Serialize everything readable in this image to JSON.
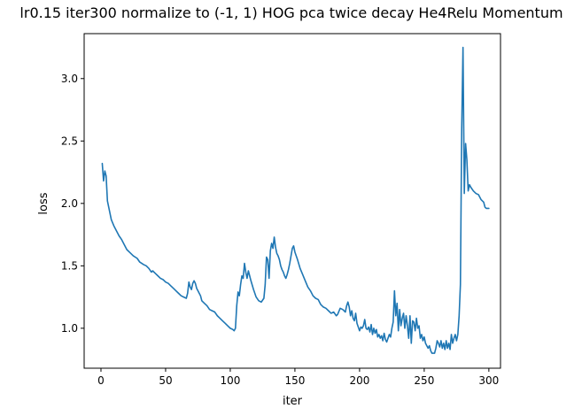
{
  "chart_data": {
    "type": "line",
    "title": "lr0.15 iter300 normalize to (-1, 1) HOG pca twice decay He4Relu Momentum",
    "xlabel": "iter",
    "ylabel": "loss",
    "xlim": [
      -13,
      309
    ],
    "ylim": [
      0.68,
      3.36
    ],
    "xticks": [
      0,
      50,
      100,
      150,
      200,
      250,
      300
    ],
    "xtick_labels": [
      "0",
      "50",
      "100",
      "150",
      "200",
      "250",
      "300"
    ],
    "yticks": [
      1.0,
      1.5,
      2.0,
      2.5,
      3.0
    ],
    "ytick_labels": [
      "1.0",
      "1.5",
      "2.0",
      "2.5",
      "3.0"
    ],
    "grid": false,
    "series": [
      {
        "color": "#1f77b4",
        "points": [
          [
            1,
            2.32
          ],
          [
            2,
            2.18
          ],
          [
            3,
            2.26
          ],
          [
            4,
            2.22
          ],
          [
            5,
            2.02
          ],
          [
            6,
            1.97
          ],
          [
            7,
            1.92
          ],
          [
            8,
            1.87
          ],
          [
            10,
            1.82
          ],
          [
            12,
            1.78
          ],
          [
            14,
            1.74
          ],
          [
            16,
            1.71
          ],
          [
            18,
            1.67
          ],
          [
            20,
            1.63
          ],
          [
            22,
            1.61
          ],
          [
            25,
            1.58
          ],
          [
            28,
            1.56
          ],
          [
            30,
            1.53
          ],
          [
            33,
            1.51
          ],
          [
            35,
            1.5
          ],
          [
            37,
            1.48
          ],
          [
            39,
            1.45
          ],
          [
            40,
            1.46
          ],
          [
            42,
            1.44
          ],
          [
            44,
            1.42
          ],
          [
            46,
            1.4
          ],
          [
            48,
            1.39
          ],
          [
            50,
            1.37
          ],
          [
            52,
            1.36
          ],
          [
            54,
            1.34
          ],
          [
            56,
            1.32
          ],
          [
            58,
            1.3
          ],
          [
            60,
            1.28
          ],
          [
            62,
            1.26
          ],
          [
            64,
            1.25
          ],
          [
            66,
            1.24
          ],
          [
            67,
            1.28
          ],
          [
            68,
            1.37
          ],
          [
            69,
            1.33
          ],
          [
            70,
            1.31
          ],
          [
            71,
            1.36
          ],
          [
            72,
            1.38
          ],
          [
            73,
            1.36
          ],
          [
            74,
            1.32
          ],
          [
            75,
            1.3
          ],
          [
            76,
            1.28
          ],
          [
            77,
            1.26
          ],
          [
            78,
            1.22
          ],
          [
            80,
            1.2
          ],
          [
            82,
            1.18
          ],
          [
            84,
            1.15
          ],
          [
            86,
            1.14
          ],
          [
            88,
            1.13
          ],
          [
            90,
            1.1
          ],
          [
            92,
            1.08
          ],
          [
            94,
            1.06
          ],
          [
            96,
            1.04
          ],
          [
            98,
            1.02
          ],
          [
            100,
            1.0
          ],
          [
            102,
            0.99
          ],
          [
            103,
            0.98
          ],
          [
            104,
            1.0
          ],
          [
            105,
            1.18
          ],
          [
            106,
            1.29
          ],
          [
            107,
            1.26
          ],
          [
            108,
            1.35
          ],
          [
            109,
            1.42
          ],
          [
            110,
            1.4
          ],
          [
            111,
            1.52
          ],
          [
            112,
            1.45
          ],
          [
            113,
            1.4
          ],
          [
            114,
            1.46
          ],
          [
            115,
            1.42
          ],
          [
            116,
            1.38
          ],
          [
            118,
            1.31
          ],
          [
            120,
            1.25
          ],
          [
            122,
            1.22
          ],
          [
            124,
            1.21
          ],
          [
            126,
            1.24
          ],
          [
            127,
            1.35
          ],
          [
            128,
            1.57
          ],
          [
            129,
            1.55
          ],
          [
            130,
            1.4
          ],
          [
            131,
            1.62
          ],
          [
            132,
            1.68
          ],
          [
            133,
            1.64
          ],
          [
            134,
            1.73
          ],
          [
            135,
            1.65
          ],
          [
            136,
            1.6
          ],
          [
            137,
            1.58
          ],
          [
            138,
            1.55
          ],
          [
            139,
            1.5
          ],
          [
            140,
            1.47
          ],
          [
            141,
            1.45
          ],
          [
            142,
            1.42
          ],
          [
            143,
            1.4
          ],
          [
            144,
            1.43
          ],
          [
            145,
            1.47
          ],
          [
            146,
            1.52
          ],
          [
            147,
            1.58
          ],
          [
            148,
            1.64
          ],
          [
            149,
            1.66
          ],
          [
            150,
            1.61
          ],
          [
            152,
            1.55
          ],
          [
            154,
            1.48
          ],
          [
            156,
            1.43
          ],
          [
            158,
            1.38
          ],
          [
            160,
            1.33
          ],
          [
            162,
            1.3
          ],
          [
            164,
            1.26
          ],
          [
            166,
            1.24
          ],
          [
            168,
            1.23
          ],
          [
            170,
            1.19
          ],
          [
            172,
            1.17
          ],
          [
            174,
            1.16
          ],
          [
            176,
            1.14
          ],
          [
            178,
            1.12
          ],
          [
            180,
            1.13
          ],
          [
            182,
            1.1
          ],
          [
            183,
            1.11
          ],
          [
            185,
            1.16
          ],
          [
            187,
            1.15
          ],
          [
            189,
            1.13
          ],
          [
            190,
            1.18
          ],
          [
            191,
            1.21
          ],
          [
            192,
            1.17
          ],
          [
            193,
            1.1
          ],
          [
            194,
            1.14
          ],
          [
            195,
            1.08
          ],
          [
            196,
            1.06
          ],
          [
            197,
            1.12
          ],
          [
            198,
            1.04
          ],
          [
            199,
            1.01
          ],
          [
            200,
            0.98
          ],
          [
            201,
            1.01
          ],
          [
            202,
            1.0
          ],
          [
            203,
            1.02
          ],
          [
            204,
            1.07
          ],
          [
            205,
            1.0
          ],
          [
            206,
            0.99
          ],
          [
            207,
            1.01
          ],
          [
            208,
            0.97
          ],
          [
            209,
            1.03
          ],
          [
            210,
            0.95
          ],
          [
            211,
            1.0
          ],
          [
            212,
            0.96
          ],
          [
            213,
            0.99
          ],
          [
            214,
            0.93
          ],
          [
            215,
            0.95
          ],
          [
            216,
            0.92
          ],
          [
            217,
            0.94
          ],
          [
            218,
            0.9
          ],
          [
            219,
            0.96
          ],
          [
            220,
            0.91
          ],
          [
            221,
            0.89
          ],
          [
            222,
            0.92
          ],
          [
            223,
            0.95
          ],
          [
            224,
            0.93
          ],
          [
            225,
            1.0
          ],
          [
            226,
            1.05
          ],
          [
            227,
            1.3
          ],
          [
            228,
            1.1
          ],
          [
            229,
            1.2
          ],
          [
            230,
            0.98
          ],
          [
            231,
            1.15
          ],
          [
            232,
            1.02
          ],
          [
            233,
            1.08
          ],
          [
            234,
            1.12
          ],
          [
            235,
            1.0
          ],
          [
            236,
            1.1
          ],
          [
            237,
            1.02
          ],
          [
            238,
            0.92
          ],
          [
            239,
            1.1
          ],
          [
            240,
            0.88
          ],
          [
            241,
            1.06
          ],
          [
            242,
            1.05
          ],
          [
            243,
            0.98
          ],
          [
            244,
            1.08
          ],
          [
            245,
            1.0
          ],
          [
            246,
            1.02
          ],
          [
            247,
            0.92
          ],
          [
            248,
            0.95
          ],
          [
            249,
            0.9
          ],
          [
            250,
            0.93
          ],
          [
            251,
            0.88
          ],
          [
            252,
            0.86
          ],
          [
            253,
            0.84
          ],
          [
            254,
            0.86
          ],
          [
            255,
            0.82
          ],
          [
            256,
            0.8
          ],
          [
            258,
            0.8
          ],
          [
            259,
            0.84
          ],
          [
            260,
            0.9
          ],
          [
            261,
            0.88
          ],
          [
            262,
            0.85
          ],
          [
            263,
            0.9
          ],
          [
            264,
            0.84
          ],
          [
            265,
            0.88
          ],
          [
            266,
            0.83
          ],
          [
            267,
            0.9
          ],
          [
            268,
            0.84
          ],
          [
            269,
            0.88
          ],
          [
            270,
            0.83
          ],
          [
            271,
            0.95
          ],
          [
            272,
            0.88
          ],
          [
            273,
            0.92
          ],
          [
            274,
            0.95
          ],
          [
            275,
            0.9
          ],
          [
            276,
            0.95
          ],
          [
            277,
            1.1
          ],
          [
            278,
            1.35
          ],
          [
            279,
            2.6
          ],
          [
            280,
            3.25
          ],
          [
            281,
            2.08
          ],
          [
            282,
            2.48
          ],
          [
            283,
            2.35
          ],
          [
            284,
            2.1
          ],
          [
            285,
            2.15
          ],
          [
            286,
            2.13
          ],
          [
            288,
            2.1
          ],
          [
            290,
            2.08
          ],
          [
            292,
            2.07
          ],
          [
            294,
            2.03
          ],
          [
            296,
            2.01
          ],
          [
            297,
            1.97
          ],
          [
            298,
            1.96
          ],
          [
            300,
            1.96
          ]
        ]
      }
    ]
  }
}
